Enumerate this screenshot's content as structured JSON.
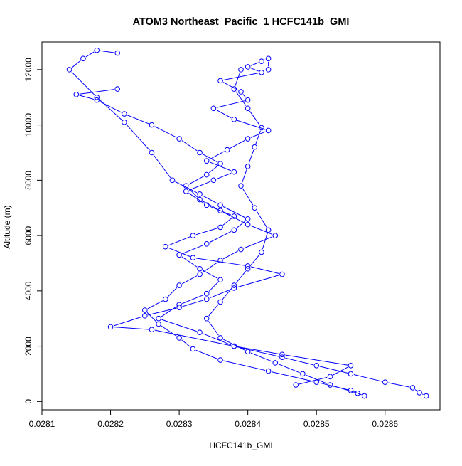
{
  "chart_data": {
    "type": "line",
    "title": "ATOM3 Northeast_Pacific_1 HCFC141b_GMI",
    "xlabel": "HCFC141b_GMI",
    "ylabel": "Altitude (m)",
    "xlim": [
      0.0281,
      0.02868
    ],
    "ylim": [
      -300,
      13000
    ],
    "x_ticks": [
      0.0281,
      0.0282,
      0.0283,
      0.0284,
      0.0285,
      0.0286
    ],
    "x_tick_labels": [
      "0.0281",
      "0.0282",
      "0.0283",
      "0.0284",
      "0.0285",
      "0.0286"
    ],
    "y_ticks": [
      0,
      2000,
      4000,
      6000,
      8000,
      10000,
      12000
    ],
    "y_tick_labels": [
      "0",
      "2000",
      "4000",
      "6000",
      "8000",
      "10000",
      "12000"
    ],
    "grid": false,
    "markers": "open-circle",
    "color": "#0000ff",
    "series": [
      {
        "x": [
          0.02866,
          0.02865,
          0.02864,
          0.0286,
          0.02855,
          0.0285,
          0.02845,
          0.02838,
          0.02826,
          0.0282,
          0.02825,
          0.0283,
          0.02834,
          0.02838,
          0.02845,
          0.0284,
          0.02832,
          0.02828,
          0.02832,
          0.02836,
          0.02838,
          0.02834,
          0.02831,
          0.02835,
          0.02838,
          0.02834,
          0.02837,
          0.0284,
          0.02843,
          0.02838,
          0.02835,
          0.0284,
          0.02839,
          0.02836,
          0.02842,
          0.0284,
          0.02842,
          0.02843,
          0.02843
        ],
        "y": [
          200,
          320,
          500,
          700,
          1000,
          1300,
          1600,
          2000,
          2600,
          2700,
          3100,
          3400,
          3700,
          4100,
          4600,
          4900,
          5200,
          5600,
          6000,
          6300,
          6700,
          7100,
          7600,
          8000,
          8300,
          8700,
          9100,
          9500,
          9800,
          10200,
          10600,
          10900,
          11200,
          11600,
          11900,
          12100,
          12300,
          12400,
          12000
        ]
      },
      {
        "x": [
          0.02857,
          0.02855,
          0.0285,
          0.02843,
          0.02836,
          0.02832,
          0.0283,
          0.02827,
          0.02825,
          0.02828,
          0.0283,
          0.02833,
          0.02836,
          0.02839,
          0.02844,
          0.0284,
          0.02836,
          0.02833,
          0.02831,
          0.02834,
          0.02836,
          0.02833,
          0.0283,
          0.02826,
          0.02822,
          0.02818,
          0.02815,
          0.02821
        ],
        "y": [
          200,
          400,
          700,
          1100,
          1500,
          1900,
          2300,
          2800,
          3300,
          3700,
          4200,
          4600,
          5100,
          5500,
          6000,
          6400,
          6900,
          7300,
          7800,
          8200,
          8600,
          9000,
          9500,
          10000,
          10400,
          10900,
          11100,
          11300
        ]
      },
      {
        "x": [
          0.02847,
          0.02852,
          0.02855,
          0.02845,
          0.02838,
          0.02833,
          0.02827,
          0.0283,
          0.02834,
          0.02836,
          0.02833,
          0.0283,
          0.02834,
          0.02838,
          0.0284,
          0.02836,
          0.02833,
          0.02829,
          0.02826,
          0.02822,
          0.02818,
          0.02814,
          0.02816,
          0.02818,
          0.02821
        ],
        "y": [
          600,
          900,
          1300,
          1700,
          2000,
          2500,
          3000,
          3500,
          3900,
          4400,
          4800,
          5300,
          5700,
          6200,
          6600,
          7100,
          7500,
          8000,
          9000,
          10100,
          11000,
          12000,
          12400,
          12700,
          12600
        ]
      },
      {
        "x": [
          0.02856,
          0.02852,
          0.02848,
          0.02844,
          0.0284,
          0.02836,
          0.02834,
          0.02836,
          0.02838,
          0.0284,
          0.02842,
          0.02843,
          0.02841,
          0.02839,
          0.0284,
          0.02841,
          0.02842,
          0.0284,
          0.02838,
          0.02839
        ],
        "y": [
          300,
          600,
          1000,
          1400,
          1800,
          2300,
          3000,
          3600,
          4200,
          4800,
          5400,
          6200,
          7000,
          7800,
          8500,
          9200,
          9900,
          10600,
          11300,
          12000
        ]
      }
    ]
  }
}
